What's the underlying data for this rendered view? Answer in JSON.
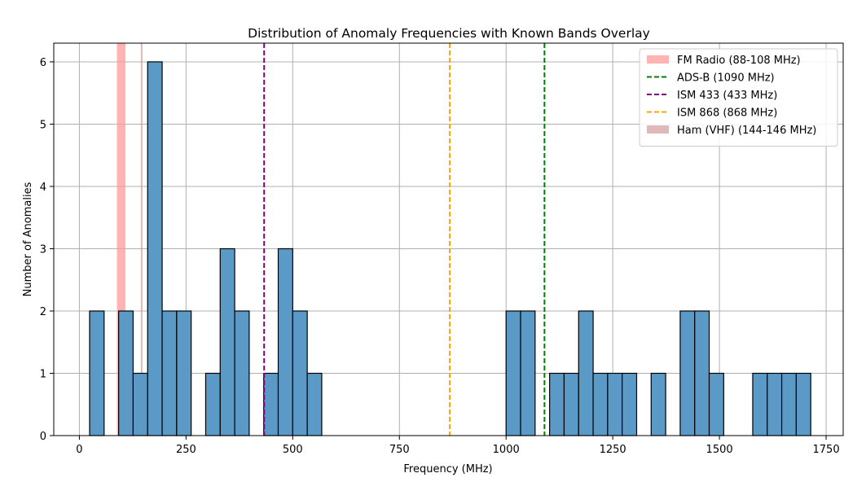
{
  "chart_data": {
    "type": "bar",
    "title": "Distribution of Anomaly Frequencies with Known Bands Overlay",
    "xlabel": "Frequency (MHz)",
    "ylabel": "Number of Anomalies",
    "xlim": [
      -60,
      1790
    ],
    "ylim": [
      0,
      6.3
    ],
    "xticks": [
      0,
      250,
      500,
      750,
      1000,
      1250,
      1500,
      1750
    ],
    "yticks": [
      0,
      1,
      2,
      3,
      4,
      5,
      6
    ],
    "grid": true,
    "legend_position": "top-right",
    "bar_color": "#5b9ac7",
    "bars": [
      {
        "x0": 24,
        "x1": 58,
        "count": 2
      },
      {
        "x0": 92,
        "x1": 126,
        "count": 2
      },
      {
        "x0": 126,
        "x1": 160,
        "count": 1
      },
      {
        "x0": 160,
        "x1": 194,
        "count": 6
      },
      {
        "x0": 194,
        "x1": 228,
        "count": 2
      },
      {
        "x0": 228,
        "x1": 262,
        "count": 2
      },
      {
        "x0": 296,
        "x1": 330,
        "count": 1
      },
      {
        "x0": 330,
        "x1": 364,
        "count": 3
      },
      {
        "x0": 364,
        "x1": 398,
        "count": 2
      },
      {
        "x0": 432,
        "x1": 466,
        "count": 1
      },
      {
        "x0": 466,
        "x1": 500,
        "count": 3
      },
      {
        "x0": 500,
        "x1": 534,
        "count": 2
      },
      {
        "x0": 534,
        "x1": 568,
        "count": 1
      },
      {
        "x0": 1000,
        "x1": 1034,
        "count": 2
      },
      {
        "x0": 1034,
        "x1": 1068,
        "count": 2
      },
      {
        "x0": 1102,
        "x1": 1136,
        "count": 1
      },
      {
        "x0": 1136,
        "x1": 1170,
        "count": 1
      },
      {
        "x0": 1170,
        "x1": 1204,
        "count": 2
      },
      {
        "x0": 1204,
        "x1": 1238,
        "count": 1
      },
      {
        "x0": 1238,
        "x1": 1272,
        "count": 1
      },
      {
        "x0": 1272,
        "x1": 1306,
        "count": 1
      },
      {
        "x0": 1340,
        "x1": 1374,
        "count": 1
      },
      {
        "x0": 1408,
        "x1": 1442,
        "count": 2
      },
      {
        "x0": 1442,
        "x1": 1476,
        "count": 2
      },
      {
        "x0": 1476,
        "x1": 1510,
        "count": 1
      },
      {
        "x0": 1578,
        "x1": 1612,
        "count": 1
      },
      {
        "x0": 1612,
        "x1": 1646,
        "count": 1
      },
      {
        "x0": 1646,
        "x1": 1680,
        "count": 1
      },
      {
        "x0": 1680,
        "x1": 1714,
        "count": 1
      }
    ],
    "bands": [
      {
        "name": "FM Radio (88-108 MHz)",
        "kind": "span",
        "x0": 88,
        "x1": 108,
        "color": "#ff9999",
        "opacity": 0.75
      },
      {
        "name": "ADS-B (1090 MHz)",
        "kind": "line",
        "x": 1090,
        "color": "#008000"
      },
      {
        "name": "ISM 433 (433 MHz)",
        "kind": "line",
        "x": 433,
        "color": "#800080"
      },
      {
        "name": "ISM 868 (868 MHz)",
        "kind": "line",
        "x": 868,
        "color": "#ffa500"
      },
      {
        "name": "Ham (VHF) (144-146 MHz)",
        "kind": "span",
        "x0": 144,
        "x1": 146,
        "color": "#c98a8a",
        "opacity": 0.6
      }
    ]
  }
}
